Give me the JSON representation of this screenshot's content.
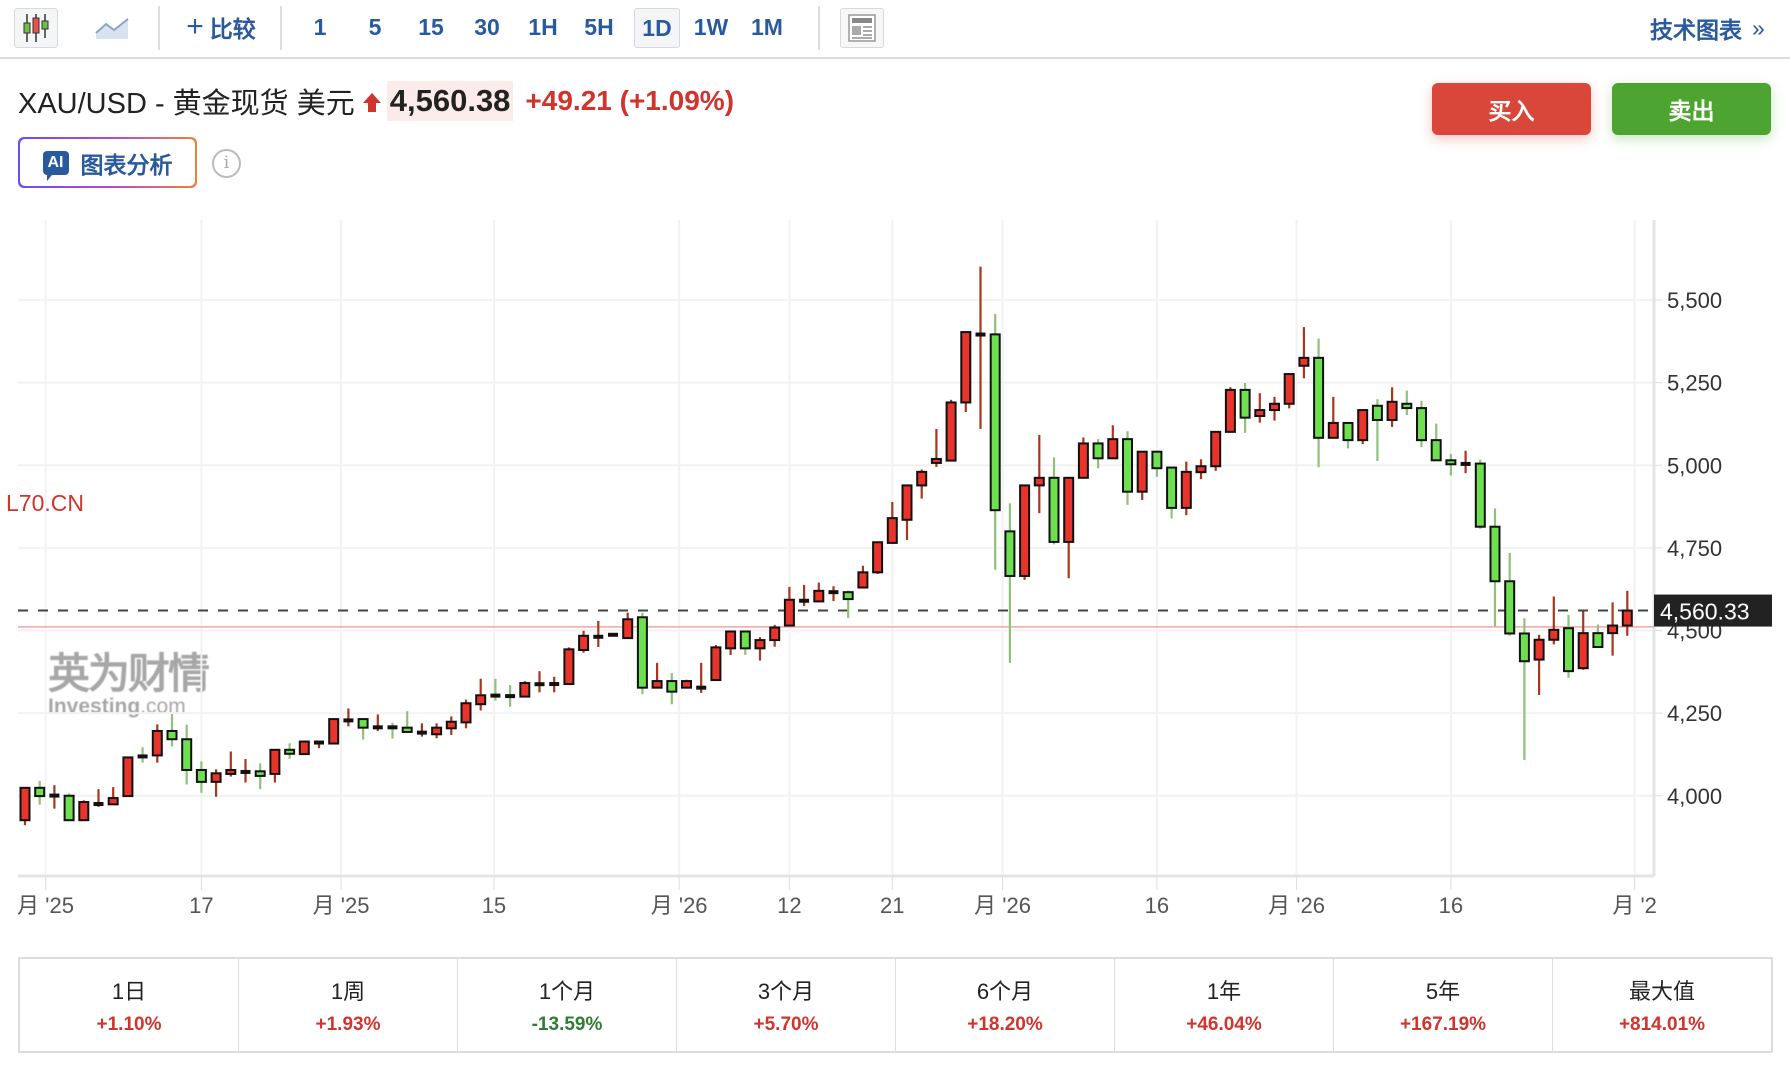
{
  "toolbar": {
    "compare_label": "比较",
    "intervals": [
      "1",
      "5",
      "15",
      "30",
      "1H",
      "5H",
      "1D",
      "1W",
      "1M"
    ],
    "selected_interval": "1D",
    "tech_chart_label": "技术图表",
    "tech_chart_chevron": "»"
  },
  "header": {
    "title": "XAU/USD - 黄金现货 美元",
    "price": "4,560.38",
    "change": "+49.21 (+1.09%)",
    "direction": "up",
    "ai_badge": "AI",
    "ai_label": "图表分析",
    "info_glyph": "i",
    "buy_label": "买入",
    "sell_label": "卖出"
  },
  "watermark": {
    "cn": "英为财情",
    "en_main": "Investing",
    "en_suffix": ".com"
  },
  "series_label": "L70.CN",
  "colors": {
    "up_fill": "#e8342a",
    "down_fill": "#6ee050",
    "up_wick": "#a8361f",
    "down_wick": "#8fc17a",
    "positive": "#d0342c",
    "negative": "#2e7d32",
    "accent": "#2a5a9e",
    "buy": "#d9473a",
    "sell": "#4ea431"
  },
  "chart_data": {
    "type": "candlestick",
    "ylim": [
      3800,
      5650
    ],
    "y_ticks": [
      "4,000",
      "4,250",
      "4,500",
      "4,750",
      "5,000",
      "5,250",
      "5,500"
    ],
    "y_tick_values": [
      4000,
      4250,
      4500,
      4750,
      5000,
      5250,
      5500
    ],
    "grid": true,
    "last_price_label": "4,560.33",
    "last_price": 4560.33,
    "reference_line": 4511,
    "x_ticks": [
      {
        "label": "月 '25",
        "at_index": 1.4
      },
      {
        "label": "17",
        "at_index": 12
      },
      {
        "label": "月 '25",
        "at_index": 21.5
      },
      {
        "label": "15",
        "at_index": 31.9
      },
      {
        "label": "月 '26",
        "at_index": 44.5
      },
      {
        "label": "12",
        "at_index": 52
      },
      {
        "label": "21",
        "at_index": 59
      },
      {
        "label": "月 '26",
        "at_index": 66.5
      },
      {
        "label": "16",
        "at_index": 77
      },
      {
        "label": "月 '26",
        "at_index": 86.5
      },
      {
        "label": "16",
        "at_index": 97
      },
      {
        "label": "月 '2",
        "at_index": 109.5
      }
    ],
    "ohlc": [
      [
        3926,
        4024,
        3911,
        4024
      ],
      [
        4024,
        4045,
        3973,
        3999
      ],
      [
        3999,
        4032,
        3961,
        4002
      ],
      [
        4000,
        4007,
        3926,
        3926
      ],
      [
        3926,
        3986,
        3926,
        3981
      ],
      [
        3974,
        4020,
        3966,
        3976
      ],
      [
        3974,
        4026,
        3972,
        3993
      ],
      [
        3999,
        4116,
        3999,
        4116
      ],
      [
        4120,
        4147,
        4100,
        4118
      ],
      [
        4122,
        4216,
        4100,
        4196
      ],
      [
        4196,
        4247,
        4149,
        4171
      ],
      [
        4171,
        4215,
        4034,
        4078
      ],
      [
        4078,
        4104,
        4009,
        4042
      ],
      [
        4042,
        4080,
        3997,
        4068
      ],
      [
        4066,
        4134,
        4058,
        4078
      ],
      [
        4071,
        4111,
        4040,
        4073
      ],
      [
        4074,
        4098,
        4020,
        4060
      ],
      [
        4066,
        4139,
        4040,
        4139
      ],
      [
        4139,
        4159,
        4112,
        4127
      ],
      [
        4126,
        4164,
        4126,
        4164
      ],
      [
        4161,
        4161,
        4144,
        4161
      ],
      [
        4158,
        4232,
        4158,
        4232
      ],
      [
        4228,
        4264,
        4210,
        4228
      ],
      [
        4232,
        4232,
        4170,
        4206
      ],
      [
        4206,
        4246,
        4196,
        4208
      ],
      [
        4208,
        4221,
        4173,
        4206
      ],
      [
        4206,
        4256,
        4193,
        4193
      ],
      [
        4191,
        4219,
        4179,
        4191
      ],
      [
        4186,
        4219,
        4174,
        4206
      ],
      [
        4204,
        4240,
        4184,
        4224
      ],
      [
        4222,
        4291,
        4204,
        4280
      ],
      [
        4277,
        4354,
        4258,
        4304
      ],
      [
        4304,
        4354,
        4288,
        4302
      ],
      [
        4302,
        4335,
        4269,
        4301
      ],
      [
        4300,
        4347,
        4300,
        4341
      ],
      [
        4337,
        4377,
        4313,
        4338
      ],
      [
        4338,
        4360,
        4313,
        4338
      ],
      [
        4338,
        4449,
        4338,
        4443
      ],
      [
        4441,
        4499,
        4433,
        4484
      ],
      [
        4481,
        4529,
        4450,
        4481
      ],
      [
        4487,
        4487,
        4487,
        4487
      ],
      [
        4477,
        4554,
        4477,
        4534
      ],
      [
        4540,
        4554,
        4307,
        4327
      ],
      [
        4327,
        4402,
        4327,
        4347
      ],
      [
        4347,
        4371,
        4277,
        4315
      ],
      [
        4327,
        4351,
        4327,
        4347
      ],
      [
        4326,
        4402,
        4311,
        4328
      ],
      [
        4350,
        4456,
        4350,
        4449
      ],
      [
        4446,
        4497,
        4426,
        4497
      ],
      [
        4497,
        4497,
        4426,
        4446
      ],
      [
        4446,
        4480,
        4409,
        4471
      ],
      [
        4471,
        4517,
        4451,
        4509
      ],
      [
        4515,
        4632,
        4515,
        4593
      ],
      [
        4589,
        4638,
        4574,
        4591
      ],
      [
        4588,
        4645,
        4588,
        4620
      ],
      [
        4616,
        4634,
        4589,
        4616
      ],
      [
        4616,
        4621,
        4538,
        4595
      ],
      [
        4630,
        4696,
        4630,
        4676
      ],
      [
        4676,
        4767,
        4671,
        4767
      ],
      [
        4765,
        4889,
        4765,
        4840
      ],
      [
        4835,
        4939,
        4774,
        4939
      ],
      [
        4939,
        4987,
        4899,
        4980
      ],
      [
        5007,
        5110,
        4995,
        5019
      ],
      [
        5014,
        5198,
        5014,
        5190
      ],
      [
        5190,
        5403,
        5161,
        5403
      ],
      [
        5395,
        5601,
        5110,
        5396
      ],
      [
        5396,
        5458,
        4684,
        4864
      ],
      [
        4800,
        4885,
        4402,
        4665
      ],
      [
        4665,
        4939,
        4653,
        4939
      ],
      [
        4939,
        5092,
        4855,
        4962
      ],
      [
        4962,
        5024,
        4761,
        4768
      ],
      [
        4768,
        4962,
        4658,
        4962
      ],
      [
        4962,
        5084,
        4962,
        5066
      ],
      [
        5066,
        5079,
        4991,
        5021
      ],
      [
        5021,
        5121,
        5021,
        5079
      ],
      [
        5079,
        5103,
        4880,
        4920
      ],
      [
        4920,
        5041,
        4895,
        5041
      ],
      [
        5041,
        5041,
        4965,
        4991
      ],
      [
        4993,
        4993,
        4839,
        4871
      ],
      [
        4871,
        5011,
        4849,
        4980
      ],
      [
        4979,
        5018,
        4958,
        4997
      ],
      [
        4997,
        5101,
        4983,
        5101
      ],
      [
        5101,
        5236,
        5101,
        5228
      ],
      [
        5228,
        5249,
        5098,
        5144
      ],
      [
        5149,
        5218,
        5129,
        5167
      ],
      [
        5167,
        5207,
        5135,
        5186
      ],
      [
        5186,
        5276,
        5172,
        5276
      ],
      [
        5301,
        5418,
        5263,
        5325
      ],
      [
        5325,
        5383,
        4994,
        5083
      ],
      [
        5083,
        5207,
        5083,
        5128
      ],
      [
        5128,
        5128,
        5051,
        5076
      ],
      [
        5076,
        5167,
        5064,
        5167
      ],
      [
        5180,
        5200,
        5013,
        5137
      ],
      [
        5137,
        5236,
        5116,
        5192
      ],
      [
        5186,
        5226,
        5152,
        5173
      ],
      [
        5173,
        5195,
        5055,
        5076
      ],
      [
        5076,
        5126,
        5015,
        5015
      ],
      [
        5015,
        5035,
        4969,
        5003
      ],
      [
        5003,
        5044,
        4976,
        5005
      ],
      [
        5005,
        5017,
        4808,
        4814
      ],
      [
        4814,
        4869,
        4512,
        4649
      ],
      [
        4649,
        4735,
        4484,
        4491
      ],
      [
        4491,
        4537,
        4108,
        4407
      ],
      [
        4412,
        4487,
        4305,
        4472
      ],
      [
        4472,
        4603,
        4458,
        4502
      ],
      [
        4507,
        4547,
        4357,
        4377
      ],
      [
        4386,
        4558,
        4381,
        4492
      ],
      [
        4492,
        4518,
        4450,
        4450
      ],
      [
        4492,
        4585,
        4424,
        4515
      ],
      [
        4515,
        4620,
        4484,
        4560.33
      ]
    ]
  },
  "performance": [
    {
      "label": "1日",
      "value": "+1.10%"
    },
    {
      "label": "1周",
      "value": "+1.93%"
    },
    {
      "label": "1个月",
      "value": "-13.59%"
    },
    {
      "label": "3个月",
      "value": "+5.70%"
    },
    {
      "label": "6个月",
      "value": "+18.20%"
    },
    {
      "label": "1年",
      "value": "+46.04%"
    },
    {
      "label": "5年",
      "value": "+167.19%"
    },
    {
      "label": "最大值",
      "value": "+814.01%"
    }
  ]
}
